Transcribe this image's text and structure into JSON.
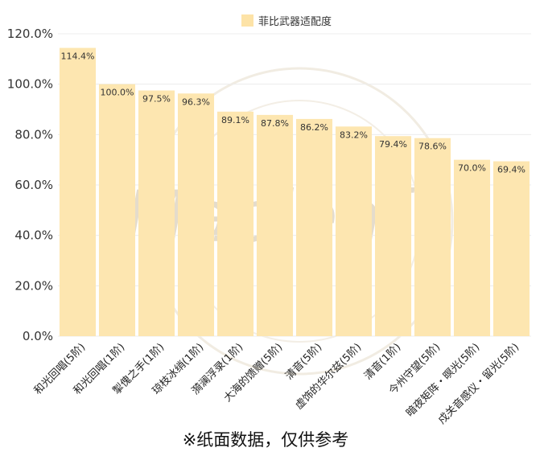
{
  "chart_data": {
    "type": "bar",
    "legend": {
      "label": "菲比武器适配度",
      "position": "top-center"
    },
    "categories": [
      "和光回唱(5阶)",
      "和光回唱(1阶)",
      "掣傀之手(1阶)",
      "琼枝冰绡(1阶)",
      "漪澜浮录(1阶)",
      "大海的馈赠(5阶)",
      "清音(5阶)",
      "虚饰的华尔兹(5阶)",
      "清音(1阶)",
      "今州守望(5阶)",
      "暗夜矩阵・暝光(5阶)",
      "戍关音感仪・留光(5阶)"
    ],
    "series": [
      {
        "name": "菲比武器适配度",
        "values": [
          114.4,
          100.0,
          97.5,
          96.3,
          89.1,
          87.8,
          86.2,
          83.2,
          79.4,
          78.6,
          70.0,
          69.4
        ],
        "value_labels": [
          "114.4%",
          "100.0%",
          "97.5%",
          "96.3%",
          "89.1%",
          "87.8%",
          "86.2%",
          "83.2%",
          "79.4%",
          "78.6%",
          "70.0%",
          "69.4%"
        ]
      }
    ],
    "ylim": [
      0,
      120
    ],
    "yticks": [
      "0.0%",
      "20.0%",
      "40.0%",
      "60.0%",
      "80.0%",
      "100.0%",
      "120.0%"
    ],
    "ytick_values": [
      0,
      20,
      40,
      60,
      80,
      100,
      120
    ],
    "grid": true,
    "xlabel": "",
    "ylabel": "",
    "colors": {
      "bar": "#fde6b0",
      "legend_swatch": "#fde3a7",
      "grid": "#ececec",
      "watermark": "#e4dccc"
    }
  },
  "watermark": "Mapleaf",
  "footnote": "※纸面数据，仅供参考"
}
